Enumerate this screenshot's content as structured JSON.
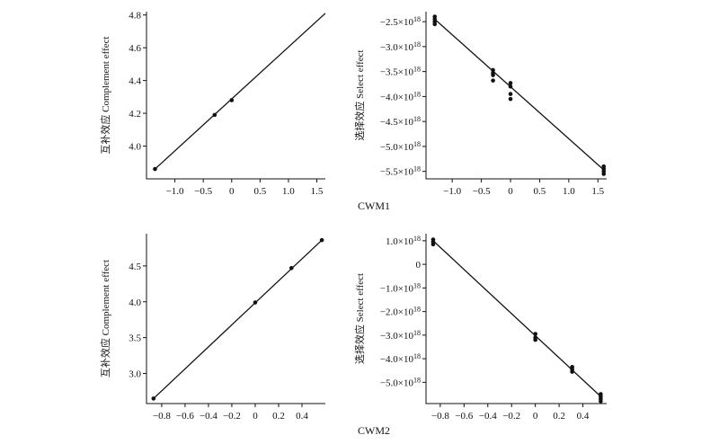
{
  "figure": {
    "row_labels": [
      "CWM1",
      "CWM2"
    ]
  },
  "chart_data": [
    {
      "type": "scatter",
      "ylabel": "互补效应 Complement effect",
      "xlim": [
        -1.5,
        1.65
      ],
      "ylim": [
        3.8,
        4.82
      ],
      "xticks": [
        -1.0,
        -0.5,
        0,
        0.5,
        1.0,
        1.5
      ],
      "xtick_labels": [
        "−1.0",
        "−0.5",
        "0",
        "0.5",
        "1.0",
        "1.5"
      ],
      "yticks": [
        4.0,
        4.2,
        4.4,
        4.6,
        4.8
      ],
      "ytick_labels": [
        "4.0",
        "4.2",
        "4.4",
        "4.6",
        "4.8"
      ],
      "series": [
        {
          "x": [
            -1.35,
            -0.3,
            0.0
          ],
          "y": [
            3.86,
            4.19,
            4.28
          ]
        }
      ],
      "fit_line": {
        "x": [
          -1.35,
          1.65
        ],
        "y": [
          3.86,
          4.81
        ]
      },
      "grid": false
    },
    {
      "type": "scatter",
      "ylabel": "选择效应 Select effect",
      "xlim": [
        -1.45,
        1.65
      ],
      "ylim": [
        -5.65,
        -2.3
      ],
      "xticks": [
        -1.0,
        -0.5,
        0,
        0.5,
        1.0,
        1.5
      ],
      "xtick_labels": [
        "−1.0",
        "−0.5",
        "0",
        "0.5",
        "1.0",
        "1.5"
      ],
      "yticks": [
        -5.5,
        -5.0,
        -4.5,
        -4.0,
        -3.5,
        -3.0,
        -2.5
      ],
      "ytick_labels": [
        "−5.5",
        "−5.0",
        "−4.5",
        "−4.0",
        "−3.5",
        "−3.0",
        "−2.5"
      ],
      "ytick_exponent": "18",
      "ytick_unit": "×10",
      "y_scale_note": "values ×10^18",
      "series": [
        {
          "x": [
            -1.3,
            -1.3,
            -1.3,
            -1.3,
            -0.3,
            -0.3,
            -0.3,
            -0.3,
            0.0,
            0.0,
            0.0,
            0.0,
            1.6,
            1.6,
            1.6,
            1.6
          ],
          "y": [
            -2.4,
            -2.45,
            -2.5,
            -2.55,
            -3.47,
            -3.53,
            -3.57,
            -3.68,
            -3.73,
            -3.8,
            -3.95,
            -4.05,
            -5.4,
            -5.45,
            -5.5,
            -5.55
          ]
        }
      ],
      "fit_line": {
        "x": [
          -1.3,
          1.6
        ],
        "y": [
          -2.45,
          -5.47
        ]
      },
      "grid": false
    },
    {
      "type": "scatter",
      "ylabel": "互补效应 Complement effect",
      "xlim": [
        -0.93,
        0.6
      ],
      "ylim": [
        2.58,
        4.95
      ],
      "xticks": [
        -0.8,
        -0.6,
        -0.4,
        -0.2,
        0,
        0.2,
        0.4
      ],
      "xtick_labels": [
        "−0.8",
        "−0.6",
        "−0.4",
        "−0.2",
        "0",
        "0.2",
        "0.4"
      ],
      "yticks": [
        3.0,
        3.5,
        4.0,
        4.5
      ],
      "ytick_labels": [
        "3.0",
        "3.5",
        "4.0",
        "4.5"
      ],
      "series": [
        {
          "x": [
            -0.87,
            0.0,
            0.31,
            0.57
          ],
          "y": [
            2.65,
            3.99,
            4.47,
            4.86
          ]
        }
      ],
      "fit_line": {
        "x": [
          -0.87,
          0.57
        ],
        "y": [
          2.65,
          4.86
        ]
      },
      "grid": false
    },
    {
      "type": "scatter",
      "ylabel": "选择效应 Select effect",
      "xlim": [
        -0.92,
        0.6
      ],
      "ylim": [
        -5.9,
        1.3
      ],
      "xticks": [
        -0.8,
        -0.6,
        -0.4,
        -0.2,
        0,
        0.2,
        0.4
      ],
      "xtick_labels": [
        "−0.8",
        "−0.6",
        "−0.4",
        "−0.2",
        "0",
        "0.2",
        "0.4"
      ],
      "yticks": [
        -5.0,
        -4.0,
        -3.0,
        -2.0,
        -1.0,
        0,
        1.0
      ],
      "ytick_labels": [
        "−5.0",
        "−4.0",
        "−3.0",
        "−2.0",
        "−1.0",
        "0",
        "1.0"
      ],
      "ytick_exponent": "18",
      "ytick_unit": "×10",
      "y_scale_note": "values ×10^18",
      "series": [
        {
          "x": [
            -0.86,
            -0.86,
            -0.86,
            0.0,
            0.0,
            0.0,
            0.31,
            0.31,
            0.31,
            0.55,
            0.55,
            0.55,
            0.55
          ],
          "y": [
            1.05,
            0.95,
            0.85,
            -2.95,
            -3.1,
            -3.2,
            -4.35,
            -4.45,
            -4.55,
            -5.5,
            -5.6,
            -5.7,
            -5.8
          ]
        }
      ],
      "fit_line": {
        "x": [
          -0.86,
          0.55
        ],
        "y": [
          1.0,
          -5.6
        ]
      },
      "grid": false
    }
  ]
}
